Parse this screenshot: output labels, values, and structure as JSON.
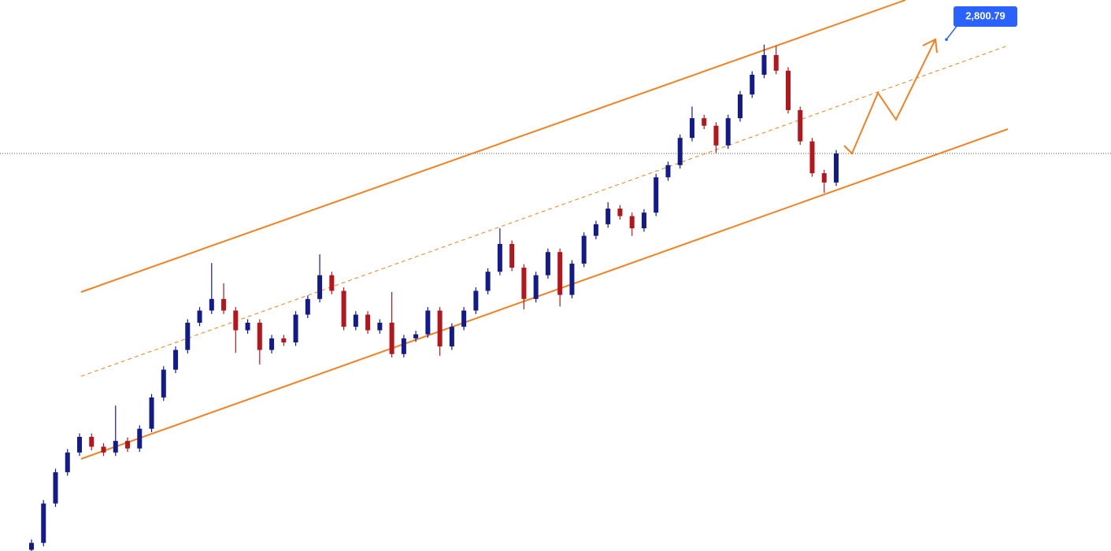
{
  "chart_data": {
    "type": "candlestick",
    "open": [
      1920,
      1932,
      2000,
      2054,
      2088,
      2115,
      2098,
      2088,
      2108,
      2095,
      2129,
      2183,
      2231,
      2265,
      2312,
      2333,
      2353,
      2333,
      2299,
      2312,
      2265,
      2285,
      2278,
      2326,
      2353,
      2394,
      2367,
      2305,
      2326,
      2299,
      2312,
      2258,
      2285,
      2292,
      2333,
      2271,
      2305,
      2333,
      2367,
      2400,
      2448,
      2407,
      2353,
      2394,
      2434,
      2360,
      2414,
      2462,
      2482,
      2509,
      2496,
      2475,
      2502,
      2563,
      2584,
      2631,
      2665,
      2652,
      2618,
      2665,
      2706,
      2740,
      2774,
      2747,
      2679,
      2625,
      2570,
      2554
    ],
    "high": [
      1938,
      2006,
      2060,
      2094,
      2121,
      2121,
      2104,
      2169,
      2114,
      2135,
      2189,
      2237,
      2271,
      2318,
      2339,
      2415,
      2380,
      2339,
      2318,
      2318,
      2291,
      2291,
      2332,
      2359,
      2430,
      2400,
      2373,
      2332,
      2332,
      2318,
      2365,
      2291,
      2298,
      2339,
      2339,
      2311,
      2339,
      2373,
      2406,
      2475,
      2454,
      2413,
      2400,
      2440,
      2440,
      2420,
      2468,
      2488,
      2520,
      2515,
      2502,
      2508,
      2569,
      2590,
      2637,
      2685,
      2671,
      2658,
      2671,
      2712,
      2746,
      2792,
      2790,
      2753,
      2685,
      2631,
      2576,
      2610
    ],
    "low": [
      1914,
      1926,
      1994,
      2048,
      2082,
      2092,
      2082,
      2082,
      2089,
      2089,
      2123,
      2177,
      2225,
      2259,
      2306,
      2327,
      2327,
      2260,
      2293,
      2240,
      2259,
      2272,
      2272,
      2320,
      2347,
      2361,
      2299,
      2299,
      2293,
      2293,
      2252,
      2252,
      2279,
      2286,
      2255,
      2265,
      2299,
      2327,
      2361,
      2394,
      2401,
      2335,
      2347,
      2388,
      2340,
      2354,
      2408,
      2456,
      2476,
      2490,
      2462,
      2469,
      2496,
      2557,
      2578,
      2625,
      2646,
      2605,
      2612,
      2659,
      2700,
      2734,
      2741,
      2673,
      2619,
      2564,
      2536,
      2548
    ],
    "close": [
      1932,
      2000,
      2054,
      2088,
      2115,
      2098,
      2088,
      2108,
      2095,
      2129,
      2183,
      2231,
      2265,
      2312,
      2333,
      2353,
      2333,
      2299,
      2312,
      2265,
      2285,
      2278,
      2326,
      2353,
      2394,
      2367,
      2305,
      2326,
      2299,
      2312,
      2258,
      2285,
      2292,
      2333,
      2271,
      2305,
      2333,
      2367,
      2400,
      2448,
      2407,
      2353,
      2394,
      2434,
      2360,
      2414,
      2462,
      2482,
      2509,
      2496,
      2475,
      2502,
      2563,
      2584,
      2631,
      2665,
      2652,
      2618,
      2665,
      2706,
      2740,
      2774,
      2747,
      2679,
      2625,
      2570,
      2554,
      2604
    ],
    "ylim": [
      1918,
      2869
    ],
    "up_color": "#131a8a",
    "down_color": "#b3161b",
    "price_label": {
      "value": 2800.79,
      "label": "2,800.79"
    }
  }
}
